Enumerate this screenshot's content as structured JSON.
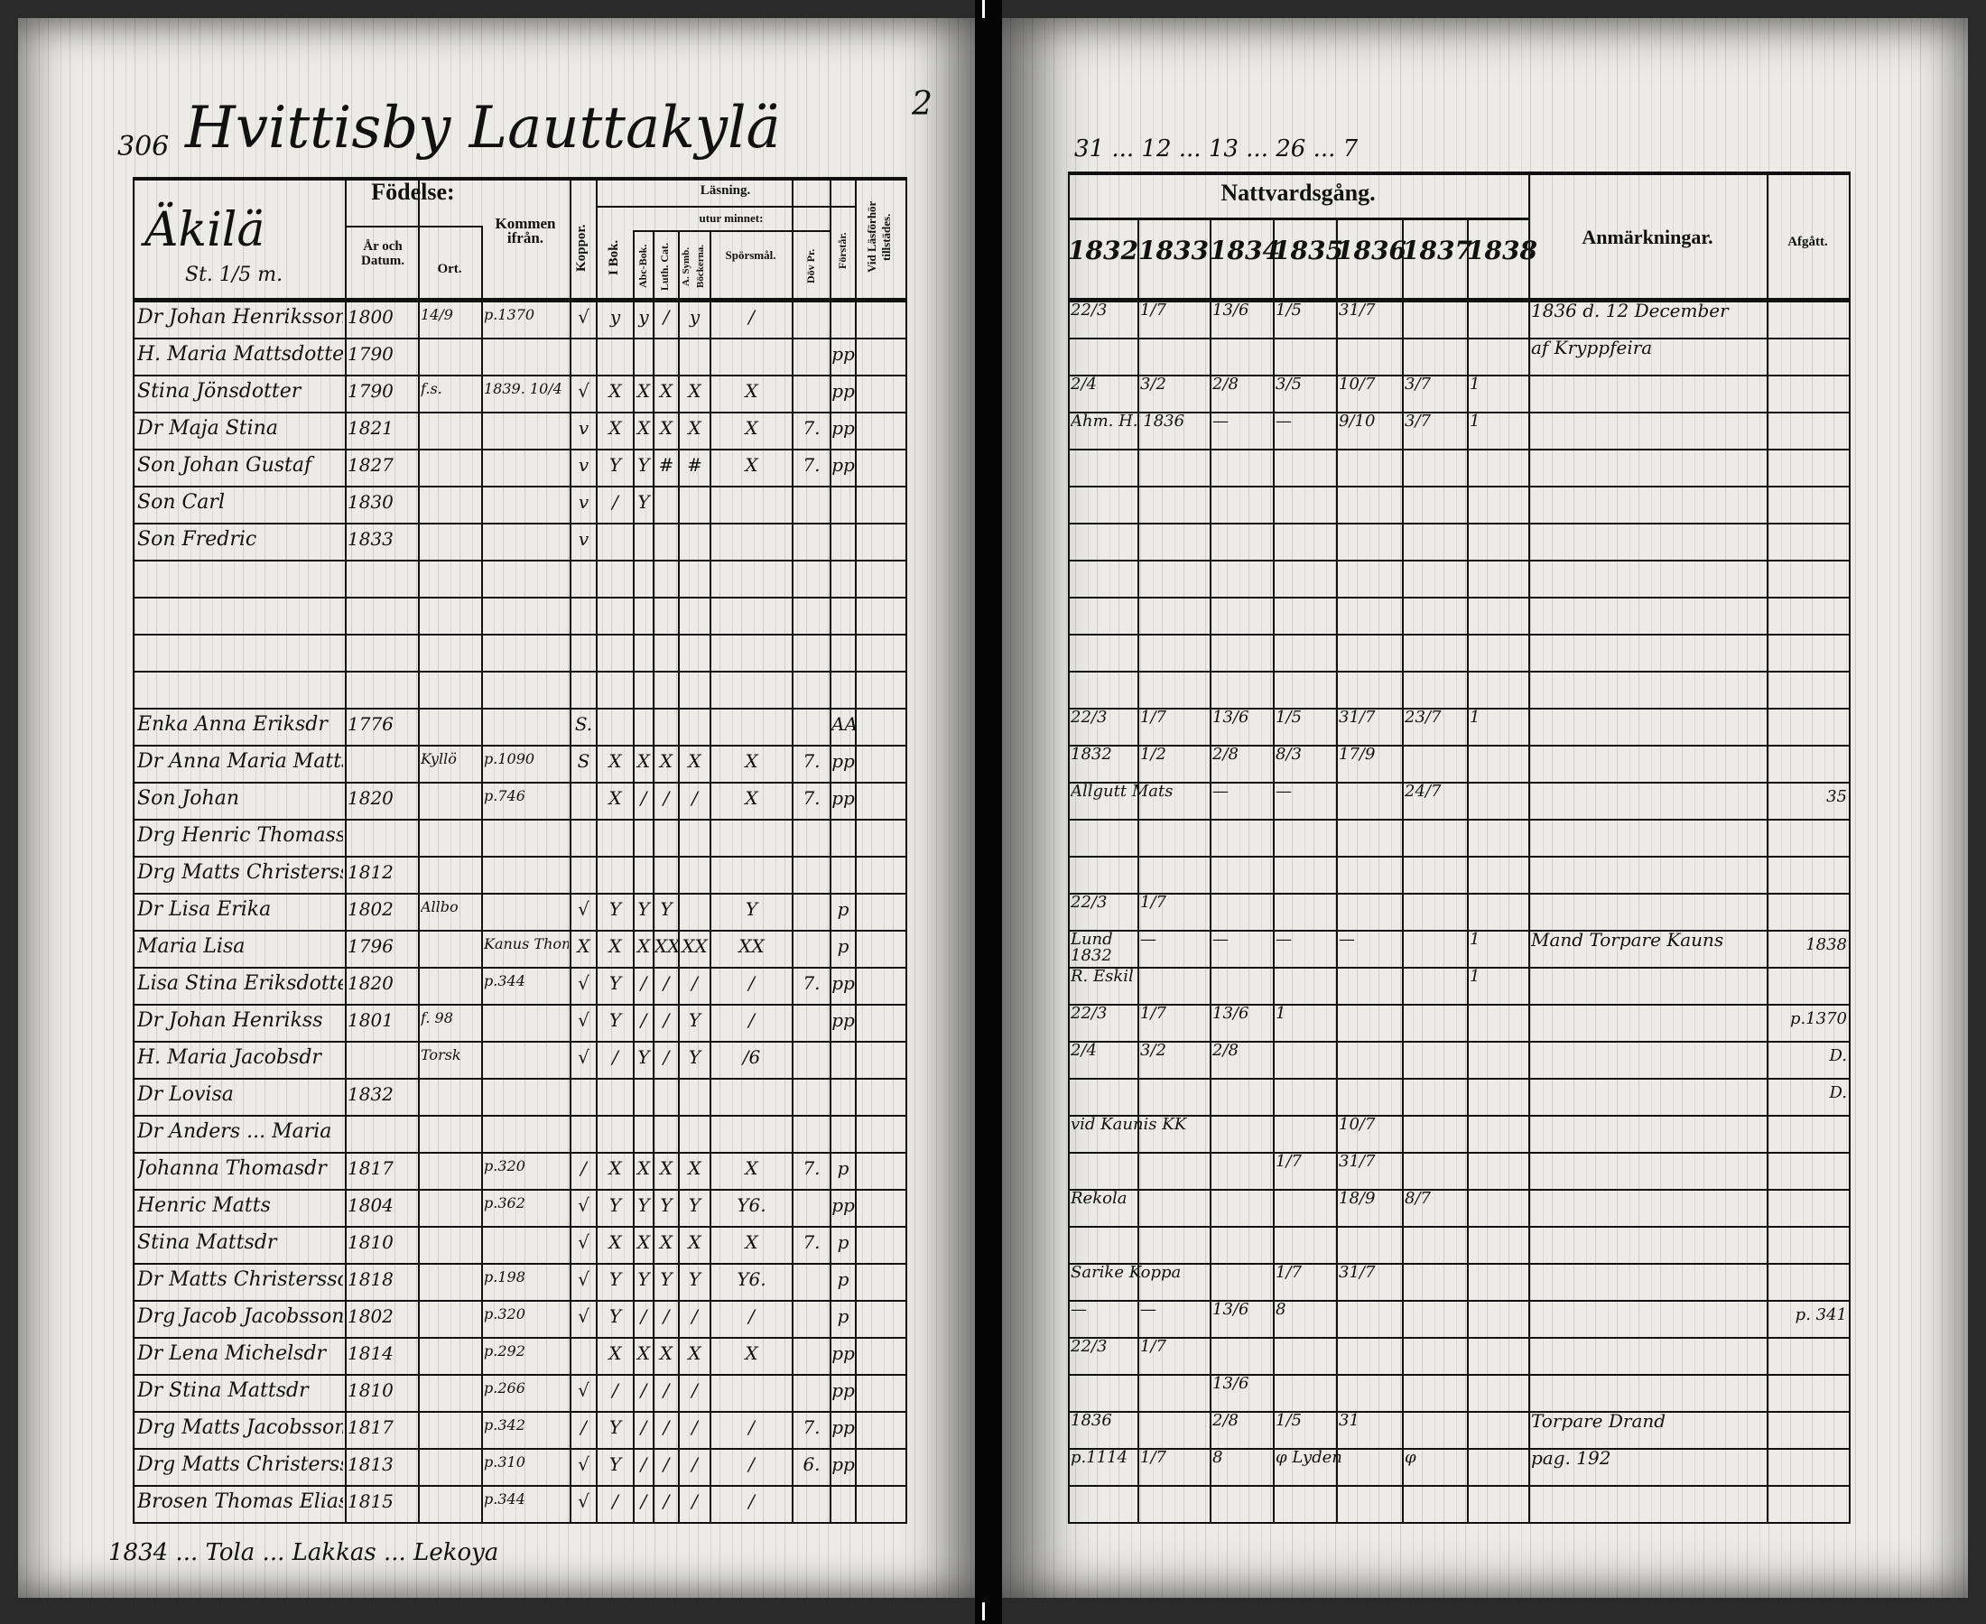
{
  "left_page": {
    "page_number": "306",
    "village_title": "Hvittisby Lauttakylä",
    "title_superscript": "2",
    "homestead": "Äkilä",
    "homestead_note": "St. 1/5 m.",
    "headers": {
      "fodelse": "Födelse:",
      "ar_och_datum": "År och Datum.",
      "ort": "Ort.",
      "kommen_ifran": "Kommen ifrån.",
      "koppor": "Koppor.",
      "lasning": "Läsning.",
      "i_bok": "I Bok.",
      "utur_minnet": "utur minnet:",
      "abc_bok": "Abc-Bok.",
      "luth_cat": "Luth. Cat.",
      "a_symb": "A. Symb. Böckerna.",
      "sporsmal": "Spörsmål.",
      "dov_pr": "Döv Pr.",
      "forstar": "Förstår.",
      "vid_lasforhor": "Vid Läsförhör tillstädes."
    },
    "rows": [
      {
        "name": "Dr Johan Henriksson",
        "year": "1800",
        "date": "14/9",
        "from": "p.1370",
        "marks": [
          "√",
          "y",
          "y",
          "/",
          "y",
          "/",
          "",
          "",
          ""
        ]
      },
      {
        "name": "H. Maria Mattsdotter",
        "year": "1790",
        "date": "",
        "from": "",
        "marks": [
          "",
          "",
          "",
          "",
          "",
          "",
          "",
          "pp",
          ""
        ]
      },
      {
        "name": "Stina Jönsdotter",
        "year": "1790",
        "date": "",
        "ort": "f.s.",
        "from": "1839. 10/4",
        "marks": [
          "√",
          "X",
          "X",
          "X",
          "X",
          "X",
          "",
          "pp",
          ""
        ]
      },
      {
        "name": "Dr Maja Stina",
        "year": "1821",
        "date": "",
        "from": "",
        "marks": [
          "v",
          "X",
          "X",
          "X",
          "X",
          "X",
          "7.",
          "pp",
          ""
        ]
      },
      {
        "name": "Son Johan Gustaf",
        "year": "1827",
        "date": "",
        "from": "",
        "marks": [
          "v",
          "Y",
          "Y",
          "#",
          "#",
          "X",
          "7.",
          "pp",
          ""
        ]
      },
      {
        "name": "Son Carl",
        "year": "1830",
        "date": "",
        "from": "",
        "marks": [
          "v",
          "/",
          "Y",
          "",
          "",
          "",
          "",
          "",
          ""
        ]
      },
      {
        "name": "Son Fredric",
        "year": "1833",
        "date": "",
        "from": "",
        "marks": [
          "v",
          "",
          "",
          "",
          "",
          "",
          "",
          "",
          ""
        ]
      },
      {
        "name": "",
        "year": "",
        "date": "",
        "from": "",
        "marks": []
      },
      {
        "name": "",
        "year": "",
        "date": "",
        "from": "",
        "marks": []
      },
      {
        "name": "",
        "year": "",
        "date": "",
        "from": "",
        "marks": []
      },
      {
        "name": "",
        "year": "",
        "date": "",
        "from": "",
        "marks": []
      },
      {
        "name": "Enka Anna Eriksdr",
        "year": "1776",
        "date": "",
        "from": "",
        "marks": [
          "S.",
          "",
          "",
          "",
          "",
          "",
          "",
          "AAA",
          ""
        ]
      },
      {
        "name": "Dr Anna Maria Mattsdr",
        "year": "",
        "date": "",
        "ort": "Kyllö",
        "from": "p.1090",
        "marks": [
          "S",
          "X",
          "X",
          "X",
          "X",
          "X",
          "7.",
          "pp",
          ""
        ]
      },
      {
        "name": "Son Johan",
        "year": "1820",
        "date": "",
        "from": "p.746",
        "marks": [
          "",
          "X",
          "/",
          "/",
          "/",
          "X",
          "7.",
          "pp",
          ""
        ]
      },
      {
        "name": "Drg Henric Thomasson",
        "year": "",
        "date": "",
        "from": "",
        "marks": []
      },
      {
        "name": "Drg Matts Christersson",
        "year": "1812",
        "date": "",
        "from": "",
        "marks": []
      },
      {
        "name": "Dr Lisa Erika",
        "year": "1802",
        "date": "",
        "ort": "Allbo",
        "from": "",
        "marks": [
          "√",
          "Y",
          "Y",
          "Y",
          "",
          "Y",
          "",
          "p",
          ""
        ]
      },
      {
        "name": "Maria Lisa",
        "year": "1796",
        "date": "",
        "from": "Kanus Thomas",
        "marks": [
          "X",
          "X",
          "X",
          "XX",
          "XX",
          "XX",
          "",
          "p",
          ""
        ]
      },
      {
        "name": "Lisa Stina Eriksdotter",
        "year": "1820",
        "date": "",
        "from": "p.344",
        "marks": [
          "√",
          "Y",
          "/",
          "/",
          "/",
          "/",
          "7.",
          "pp",
          ""
        ]
      },
      {
        "name": "Dr Johan Henrikss",
        "year": "1801",
        "date": "",
        "ort": "f. 98",
        "from": "",
        "marks": [
          "√",
          "Y",
          "/",
          "/",
          "Y",
          "/",
          "",
          "pp",
          ""
        ]
      },
      {
        "name": "H. Maria Jacobsdr",
        "year": "",
        "date": "",
        "ort": "Torsk",
        "from": "",
        "marks": [
          "√",
          "/",
          "Y",
          "/",
          "Y",
          "/6",
          "",
          "",
          ""
        ]
      },
      {
        "name": "Dr Lovisa",
        "year": "1832",
        "date": "",
        "from": "",
        "marks": []
      },
      {
        "name": "Dr Anders ... Maria",
        "year": "",
        "date": "",
        "from": "",
        "marks": []
      },
      {
        "name": "Johanna Thomasdr",
        "year": "1817",
        "date": "",
        "from": "p.320",
        "marks": [
          "/",
          "X",
          "X",
          "X",
          "X",
          "X",
          "7.",
          "p",
          ""
        ]
      },
      {
        "name": "Henric Matts",
        "year": "1804",
        "date": "",
        "from": "p.362",
        "marks": [
          "√",
          "Y",
          "Y",
          "Y",
          "Y",
          "Y6.",
          "",
          "pp",
          ""
        ]
      },
      {
        "name": "Stina Mattsdr",
        "year": "1810",
        "date": "",
        "from": "",
        "marks": [
          "√",
          "X",
          "X",
          "X",
          "X",
          "X",
          "7.",
          "p",
          ""
        ]
      },
      {
        "name": "Dr Matts Christersson",
        "year": "1818",
        "date": "",
        "from": "p.198",
        "marks": [
          "√",
          "Y",
          "Y",
          "Y",
          "Y",
          "Y6.",
          "",
          "p",
          ""
        ]
      },
      {
        "name": "Drg Jacob Jacobsson",
        "year": "1802",
        "date": "",
        "from": "p.320",
        "marks": [
          "√",
          "Y",
          "/",
          "/",
          "/",
          "/",
          "",
          "p",
          ""
        ]
      },
      {
        "name": "Dr Lena Michelsdr",
        "year": "1814",
        "date": "",
        "from": "p.292",
        "marks": [
          "",
          "X",
          "X",
          "X",
          "X",
          "X",
          "",
          "pp",
          ""
        ]
      },
      {
        "name": "Dr Stina Mattsdr",
        "year": "1810",
        "date": "",
        "from": "p.266",
        "marks": [
          "√",
          "/",
          "/",
          "/",
          "/",
          "",
          "",
          "pp",
          ""
        ]
      },
      {
        "name": "Drg Matts Jacobsson",
        "year": "1817",
        "date": "",
        "from": "p.342",
        "marks": [
          "/",
          "Y",
          "/",
          "/",
          "/",
          "/",
          "7.",
          "pp",
          ""
        ]
      },
      {
        "name": "Drg Matts Christersson",
        "year": "1813",
        "date": "",
        "from": "p.310",
        "marks": [
          "√",
          "Y",
          "/",
          "/",
          "/",
          "/",
          "6.",
          "pp",
          ""
        ]
      },
      {
        "name": "Brosen Thomas Eliasson",
        "year": "1815",
        "date": "",
        "from": "p.344",
        "marks": [
          "√",
          "/",
          "/",
          "/",
          "/",
          "/",
          "",
          "",
          ""
        ]
      }
    ],
    "footer_note": "1834 ... Tola ... Lakkas ... Lekoya"
  },
  "right_page": {
    "headers": {
      "nattvardsgang": "Nattvardsgång.",
      "years": [
        "1832",
        "1833",
        "1834",
        "1835",
        "1836",
        "1837",
        "1838"
      ],
      "anmarkningar": "Anmärkningar.",
      "afgatt": "Afgått."
    },
    "rows": [
      {
        "cells": [
          "22/3",
          "1/7",
          "13/6",
          "1/5",
          "31/7",
          "",
          "",
          "1836 d. 12 December"
        ],
        "afgatt": ""
      },
      {
        "cells": [
          "",
          "",
          "",
          "",
          "",
          "",
          "",
          "af Kryppfeira"
        ],
        "afgatt": ""
      },
      {
        "cells": [
          "2/4",
          "3/2",
          "2/8",
          "3/5",
          "10/7",
          "3/7",
          "1",
          ""
        ],
        "afgatt": ""
      },
      {
        "cells": [
          "Ahm. H. 1836",
          "",
          "—",
          "—",
          "9/10",
          "3/7",
          "1",
          ""
        ],
        "afgatt": ""
      },
      {
        "cells": [],
        "afgatt": ""
      },
      {
        "cells": [],
        "afgatt": ""
      },
      {
        "cells": [],
        "afgatt": ""
      },
      {
        "cells": [],
        "afgatt": ""
      },
      {
        "cells": [],
        "afgatt": ""
      },
      {
        "cells": [],
        "afgatt": ""
      },
      {
        "cells": [],
        "afgatt": ""
      },
      {
        "cells": [
          "22/3",
          "1/7",
          "13/6",
          "1/5",
          "31/7",
          "23/7",
          "1",
          ""
        ],
        "afgatt": ""
      },
      {
        "cells": [
          "1832",
          "1/2",
          "2/8",
          "8/3",
          "17/9",
          "",
          "",
          ""
        ],
        "afgatt": ""
      },
      {
        "cells": [
          "Allgutt Mats",
          "",
          "—",
          "—",
          "",
          "24/7",
          "",
          ""
        ],
        "afgatt": "35"
      },
      {
        "cells": [],
        "afgatt": ""
      },
      {
        "cells": [],
        "afgatt": ""
      },
      {
        "cells": [
          "22/3",
          "1/7",
          "",
          "",
          "",
          "",
          "",
          ""
        ],
        "afgatt": ""
      },
      {
        "cells": [
          "Lund 1832",
          "—",
          "—",
          "—",
          "—",
          "",
          "1",
          "Mand Torpare Kauns"
        ],
        "afgatt": "1838"
      },
      {
        "cells": [
          "R. Eskil",
          "",
          "",
          "",
          "",
          "",
          "1",
          ""
        ],
        "afgatt": ""
      },
      {
        "cells": [
          "22/3",
          "1/7",
          "13/6",
          "1",
          "",
          "",
          "",
          ""
        ],
        "afgatt": "p.1370"
      },
      {
        "cells": [
          "2/4",
          "3/2",
          "2/8",
          "",
          "",
          "",
          "",
          ""
        ],
        "afgatt": "D."
      },
      {
        "cells": [],
        "afgatt": "D."
      },
      {
        "cells": [
          "vid Kaunis KK",
          "",
          "",
          "",
          "10/7",
          "",
          "",
          ""
        ],
        "afgatt": ""
      },
      {
        "cells": [
          "",
          "",
          "",
          "1/7",
          "31/7",
          "",
          "",
          ""
        ],
        "afgatt": ""
      },
      {
        "cells": [
          "Rekola",
          "",
          "",
          "",
          "18/9",
          "8/7",
          "",
          ""
        ],
        "afgatt": ""
      },
      {
        "cells": [
          "",
          "",
          "",
          "",
          "",
          "",
          "",
          ""
        ],
        "afgatt": ""
      },
      {
        "cells": [
          "Sarike Koppa",
          "",
          "",
          "1/7",
          "31/7",
          "",
          "",
          ""
        ],
        "afgatt": ""
      },
      {
        "cells": [
          "—",
          "—",
          "13/6",
          "8",
          "",
          "",
          "",
          ""
        ],
        "afgatt": "p. 341"
      },
      {
        "cells": [
          "22/3",
          "1/7",
          "",
          "",
          "",
          "",
          "",
          ""
        ],
        "afgatt": ""
      },
      {
        "cells": [
          "",
          "",
          "13/6",
          "",
          "",
          "",
          "",
          ""
        ],
        "afgatt": ""
      },
      {
        "cells": [
          "1836",
          "",
          "2/8",
          "1/5",
          "31",
          "",
          "",
          "Torpare Drand"
        ],
        "afgatt": ""
      },
      {
        "cells": [
          "p.1114",
          "1/7",
          "8",
          "φ Lyden",
          "",
          "φ",
          "",
          "pag. 192"
        ],
        "afgatt": ""
      },
      {
        "cells": [],
        "afgatt": ""
      }
    ],
    "top_marks": "31 ... 12 ... 13 ... 26 ... 7"
  }
}
